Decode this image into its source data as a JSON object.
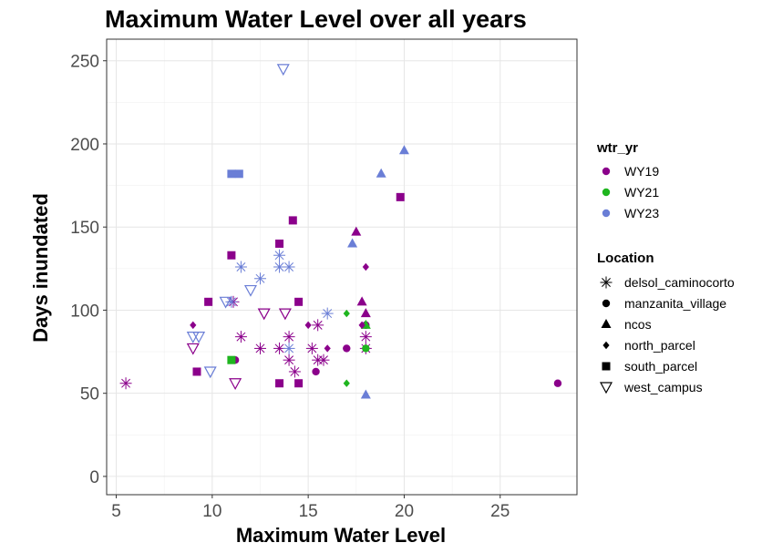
{
  "chart_data": {
    "type": "scatter",
    "title": "Maximum Water Level over all years",
    "xlabel": "Maximum Water Level",
    "ylabel": "Days inundated",
    "xlim": [
      4.5,
      29
    ],
    "ylim": [
      -11,
      263
    ],
    "x_ticks": [
      5,
      10,
      15,
      20,
      25
    ],
    "y_ticks": [
      0,
      50,
      100,
      150,
      200,
      250
    ],
    "grid": true,
    "legend_placement": "right",
    "color_legend": {
      "title": "wtr_yr",
      "entries": [
        {
          "label": "WY19",
          "color": "#8b008b"
        },
        {
          "label": "WY21",
          "color": "#1fb51f"
        },
        {
          "label": "WY23",
          "color": "#6a7ed6"
        }
      ]
    },
    "shape_legend": {
      "title": "Location",
      "entries": [
        {
          "label": "delsol_caminocorto",
          "shape": "asterisk"
        },
        {
          "label": "manzanita_village",
          "shape": "circle"
        },
        {
          "label": "ncos",
          "shape": "triangle"
        },
        {
          "label": "north_parcel",
          "shape": "diamond"
        },
        {
          "label": "south_parcel",
          "shape": "square"
        },
        {
          "label": "west_campus",
          "shape": "triangle-down-open"
        }
      ]
    },
    "points": [
      {
        "x": 5.5,
        "y": 56,
        "year": "WY19",
        "location": "delsol_caminocorto"
      },
      {
        "x": 11.1,
        "y": 105,
        "year": "WY19",
        "location": "delsol_caminocorto"
      },
      {
        "x": 11.5,
        "y": 84,
        "year": "WY19",
        "location": "delsol_caminocorto"
      },
      {
        "x": 12.5,
        "y": 77,
        "year": "WY19",
        "location": "delsol_caminocorto"
      },
      {
        "x": 13.5,
        "y": 77,
        "year": "WY19",
        "location": "delsol_caminocorto"
      },
      {
        "x": 14.0,
        "y": 84,
        "year": "WY19",
        "location": "delsol_caminocorto"
      },
      {
        "x": 14.0,
        "y": 70,
        "year": "WY19",
        "location": "delsol_caminocorto"
      },
      {
        "x": 14.3,
        "y": 63,
        "year": "WY19",
        "location": "delsol_caminocorto"
      },
      {
        "x": 15.2,
        "y": 77,
        "year": "WY19",
        "location": "delsol_caminocorto"
      },
      {
        "x": 15.5,
        "y": 91,
        "year": "WY19",
        "location": "delsol_caminocorto"
      },
      {
        "x": 15.5,
        "y": 70,
        "year": "WY19",
        "location": "delsol_caminocorto"
      },
      {
        "x": 15.8,
        "y": 70,
        "year": "WY19",
        "location": "delsol_caminocorto"
      },
      {
        "x": 18.0,
        "y": 84,
        "year": "WY19",
        "location": "delsol_caminocorto"
      },
      {
        "x": 18.0,
        "y": 77,
        "year": "WY19",
        "location": "delsol_caminocorto"
      },
      {
        "x": 11.0,
        "y": 105,
        "year": "WY23",
        "location": "delsol_caminocorto"
      },
      {
        "x": 11.5,
        "y": 126,
        "year": "WY23",
        "location": "delsol_caminocorto"
      },
      {
        "x": 12.5,
        "y": 119,
        "year": "WY23",
        "location": "delsol_caminocorto"
      },
      {
        "x": 13.5,
        "y": 133,
        "year": "WY23",
        "location": "delsol_caminocorto"
      },
      {
        "x": 13.5,
        "y": 126,
        "year": "WY23",
        "location": "delsol_caminocorto"
      },
      {
        "x": 14.0,
        "y": 126,
        "year": "WY23",
        "location": "delsol_caminocorto"
      },
      {
        "x": 14.0,
        "y": 77,
        "year": "WY23",
        "location": "delsol_caminocorto"
      },
      {
        "x": 16.0,
        "y": 98,
        "year": "WY23",
        "location": "delsol_caminocorto"
      },
      {
        "x": 11.2,
        "y": 70,
        "year": "WY19",
        "location": "manzanita_village"
      },
      {
        "x": 15.4,
        "y": 63,
        "year": "WY19",
        "location": "manzanita_village"
      },
      {
        "x": 17.0,
        "y": 77,
        "year": "WY19",
        "location": "manzanita_village"
      },
      {
        "x": 18.0,
        "y": 91,
        "year": "WY19",
        "location": "manzanita_village"
      },
      {
        "x": 28.0,
        "y": 56,
        "year": "WY19",
        "location": "manzanita_village"
      },
      {
        "x": 18.0,
        "y": 77,
        "year": "WY21",
        "location": "manzanita_village"
      },
      {
        "x": 17.5,
        "y": 147,
        "year": "WY19",
        "location": "ncos"
      },
      {
        "x": 17.8,
        "y": 105,
        "year": "WY19",
        "location": "ncos"
      },
      {
        "x": 18.0,
        "y": 98,
        "year": "WY19",
        "location": "ncos"
      },
      {
        "x": 18.0,
        "y": 91,
        "year": "WY21",
        "location": "ncos"
      },
      {
        "x": 17.3,
        "y": 140,
        "year": "WY23",
        "location": "ncos"
      },
      {
        "x": 18.8,
        "y": 182,
        "year": "WY23",
        "location": "ncos"
      },
      {
        "x": 20.0,
        "y": 196,
        "year": "WY23",
        "location": "ncos"
      },
      {
        "x": 18.0,
        "y": 49,
        "year": "WY23",
        "location": "ncos"
      },
      {
        "x": 9.0,
        "y": 91,
        "year": "WY19",
        "location": "north_parcel"
      },
      {
        "x": 15.0,
        "y": 91,
        "year": "WY19",
        "location": "north_parcel"
      },
      {
        "x": 16.0,
        "y": 77,
        "year": "WY19",
        "location": "north_parcel"
      },
      {
        "x": 18.0,
        "y": 126,
        "year": "WY19",
        "location": "north_parcel"
      },
      {
        "x": 17.8,
        "y": 91,
        "year": "WY19",
        "location": "north_parcel"
      },
      {
        "x": 17.0,
        "y": 98,
        "year": "WY21",
        "location": "north_parcel"
      },
      {
        "x": 17.0,
        "y": 56,
        "year": "WY21",
        "location": "north_parcel"
      },
      {
        "x": 9.2,
        "y": 63,
        "year": "WY19",
        "location": "south_parcel"
      },
      {
        "x": 9.8,
        "y": 105,
        "year": "WY19",
        "location": "south_parcel"
      },
      {
        "x": 11.0,
        "y": 133,
        "year": "WY19",
        "location": "south_parcel"
      },
      {
        "x": 13.5,
        "y": 140,
        "year": "WY19",
        "location": "south_parcel"
      },
      {
        "x": 13.5,
        "y": 56,
        "year": "WY19",
        "location": "south_parcel"
      },
      {
        "x": 14.2,
        "y": 154,
        "year": "WY19",
        "location": "south_parcel"
      },
      {
        "x": 14.5,
        "y": 105,
        "year": "WY19",
        "location": "south_parcel"
      },
      {
        "x": 14.5,
        "y": 56,
        "year": "WY19",
        "location": "south_parcel"
      },
      {
        "x": 19.8,
        "y": 168,
        "year": "WY19",
        "location": "south_parcel"
      },
      {
        "x": 11.0,
        "y": 70,
        "year": "WY21",
        "location": "south_parcel"
      },
      {
        "x": 11.0,
        "y": 182,
        "year": "WY23",
        "location": "south_parcel"
      },
      {
        "x": 11.4,
        "y": 182,
        "year": "WY23",
        "location": "south_parcel"
      },
      {
        "x": 9.0,
        "y": 77,
        "year": "WY19",
        "location": "west_campus"
      },
      {
        "x": 11.2,
        "y": 56,
        "year": "WY19",
        "location": "west_campus"
      },
      {
        "x": 12.7,
        "y": 98,
        "year": "WY19",
        "location": "west_campus"
      },
      {
        "x": 13.8,
        "y": 98,
        "year": "WY19",
        "location": "west_campus"
      },
      {
        "x": 9.0,
        "y": 84,
        "year": "WY23",
        "location": "west_campus"
      },
      {
        "x": 9.3,
        "y": 84,
        "year": "WY23",
        "location": "west_campus"
      },
      {
        "x": 9.9,
        "y": 63,
        "year": "WY23",
        "location": "west_campus"
      },
      {
        "x": 10.7,
        "y": 105,
        "year": "WY23",
        "location": "west_campus"
      },
      {
        "x": 12.0,
        "y": 112,
        "year": "WY23",
        "location": "west_campus"
      },
      {
        "x": 13.7,
        "y": 245,
        "year": "WY23",
        "location": "west_campus"
      }
    ]
  }
}
